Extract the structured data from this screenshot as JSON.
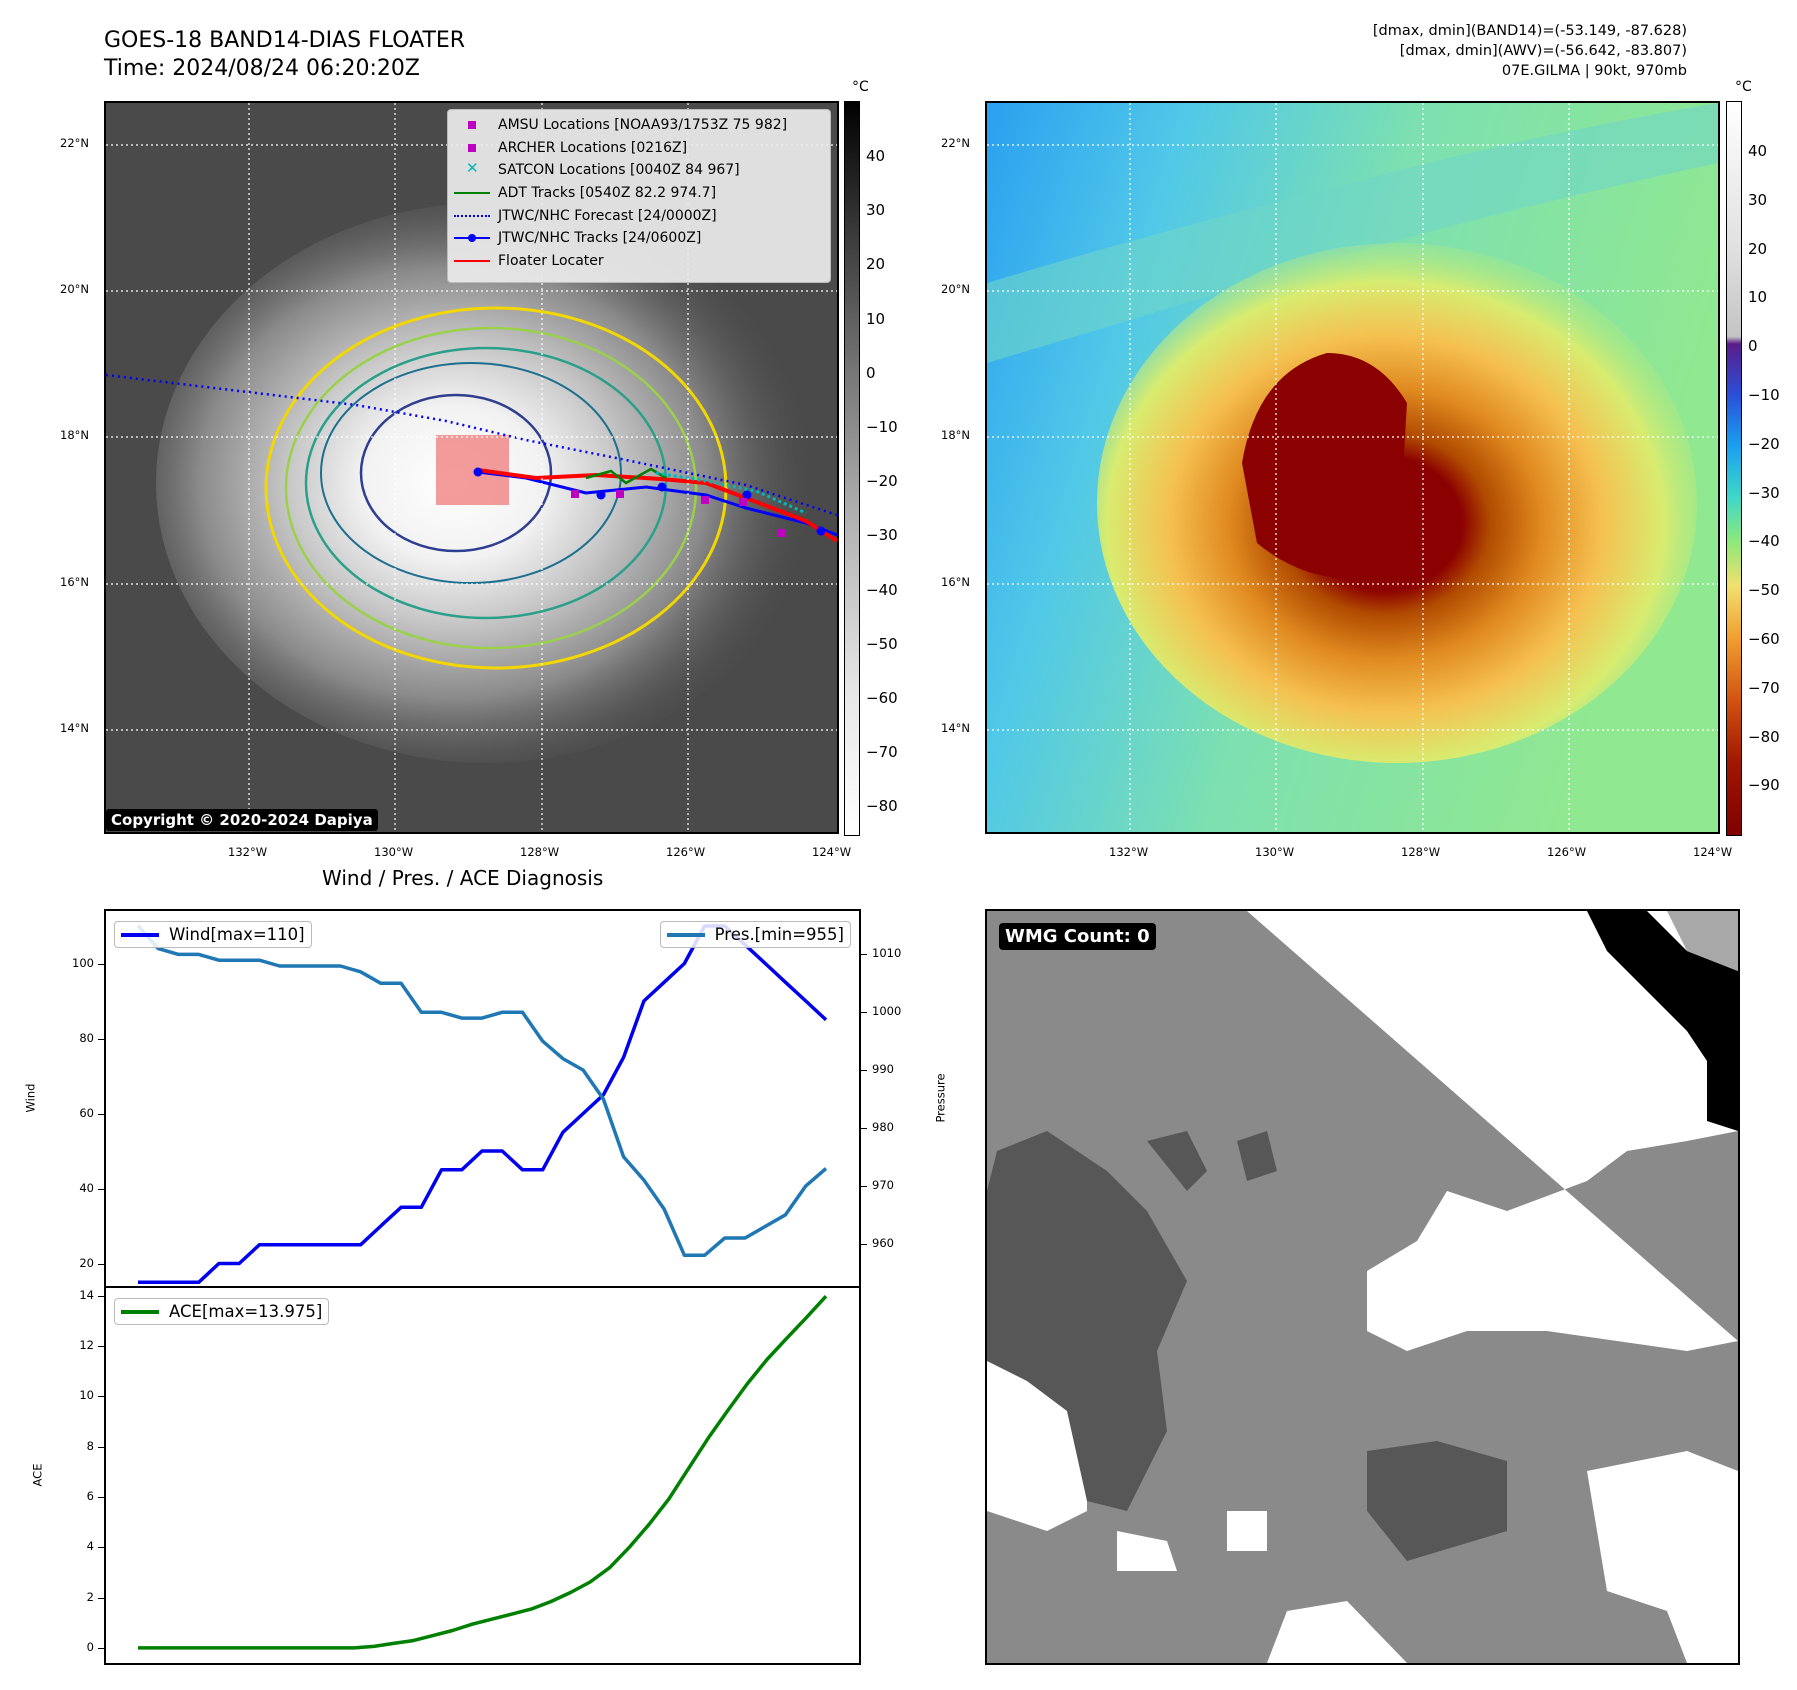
{
  "header": {
    "title": "GOES-18 BAND14-DIAS FLOATER",
    "time": "Time: 2024/08/24 06:20:20Z",
    "info_line1": "[dmax, dmin](BAND14)=(-53.149, -87.628)",
    "info_line2": "[dmax, dmin](AWV)=(-56.642, -83.807)",
    "info_line3": "07E.GILMA | 90kt, 970mb"
  },
  "map": {
    "lat_labels": [
      "22°N",
      "20°N",
      "18°N",
      "16°N",
      "14°N"
    ],
    "lon_labels": [
      "132°W",
      "130°W",
      "128°W",
      "126°W",
      "124°W"
    ],
    "copyright": "Copyright © 2020-2024 Dapiya",
    "legend": [
      {
        "label": "AMSU Locations [NOAA93/1753Z 75 982]",
        "icon": "magenta-square",
        "color": "#c000c0"
      },
      {
        "label": "ARCHER Locations [0216Z]",
        "icon": "magenta-square",
        "color": "#c000c0"
      },
      {
        "label": "SATCON Locations [0040Z 84 967]",
        "icon": "cyan-x",
        "color": "#00b8b8"
      },
      {
        "label": "ADT Tracks [0540Z 82.2 974.7]",
        "icon": "green-line",
        "color": "#008000"
      },
      {
        "label": "JTWC/NHC Forecast [24/0000Z]",
        "icon": "blue-dotted-line",
        "color": "#0000ff"
      },
      {
        "label": "JTWC/NHC Tracks [24/0600Z]",
        "icon": "blue-line-dot",
        "color": "#0000ff"
      },
      {
        "label": "Floater Locater",
        "icon": "red-line",
        "color": "#ff0000"
      }
    ]
  },
  "colorbar_ir": {
    "unit": "°C",
    "ticks": [
      "40",
      "30",
      "20",
      "10",
      "0",
      "−10",
      "−20",
      "−30",
      "−40",
      "−50",
      "−60",
      "−70",
      "−80"
    ]
  },
  "colorbar_awv": {
    "unit": "°C",
    "ticks": [
      "40",
      "30",
      "20",
      "10",
      "0",
      "−10",
      "−20",
      "−30",
      "−40",
      "−50",
      "−60",
      "−70",
      "−80",
      "−90"
    ]
  },
  "wmg": {
    "label": "WMG Count: 0"
  },
  "chart_data": [
    {
      "type": "line",
      "title": "Wind / Pres. / ACE Diagnosis",
      "ylabel": "Wind",
      "ylabel_right": "Pressure",
      "ylim": [
        14,
        114
      ],
      "ylim_right": [
        952.7,
        1017.5
      ],
      "yticks": [
        20,
        40,
        60,
        80,
        100
      ],
      "yticks_right": [
        960,
        970,
        980,
        990,
        1000,
        1010
      ],
      "series": [
        {
          "name": "Wind[max=110]",
          "color": "#0000ee",
          "axis": "left",
          "values": [
            15,
            15,
            15,
            15,
            20,
            20,
            25,
            25,
            25,
            25,
            25,
            25,
            30,
            35,
            35,
            45,
            45,
            50,
            50,
            45,
            45,
            55,
            60,
            65,
            75,
            90,
            95,
            100,
            110,
            110,
            105,
            100,
            95,
            90,
            85
          ]
        },
        {
          "name": "Pres.[min=955]",
          "color": "#1f77b4",
          "axis": "right",
          "values": [
            1015,
            1011,
            1010,
            1010,
            1009,
            1009,
            1009,
            1008,
            1008,
            1008,
            1008,
            1007,
            1005,
            1005,
            1000,
            1000,
            999,
            999,
            1000,
            1000,
            995,
            992,
            990,
            985,
            975,
            971,
            966,
            958,
            958,
            961,
            961,
            963,
            965,
            970,
            973
          ]
        }
      ]
    },
    {
      "type": "line",
      "ylabel": "ACE",
      "ylim": [
        -0.6,
        14.3
      ],
      "yticks": [
        0,
        2,
        4,
        6,
        8,
        10,
        12,
        14
      ],
      "series": [
        {
          "name": "ACE[max=13.975]",
          "color": "#008000",
          "values": [
            0,
            0,
            0,
            0,
            0,
            0,
            0,
            0,
            0,
            0,
            0,
            0,
            0.06,
            0.18,
            0.29,
            0.49,
            0.69,
            0.94,
            1.14,
            1.34,
            1.54,
            1.84,
            2.2,
            2.62,
            3.19,
            4.0,
            4.91,
            5.91,
            7.12,
            8.33,
            9.43,
            10.5,
            11.46,
            12.3,
            13.12,
            13.975
          ]
        }
      ]
    }
  ]
}
